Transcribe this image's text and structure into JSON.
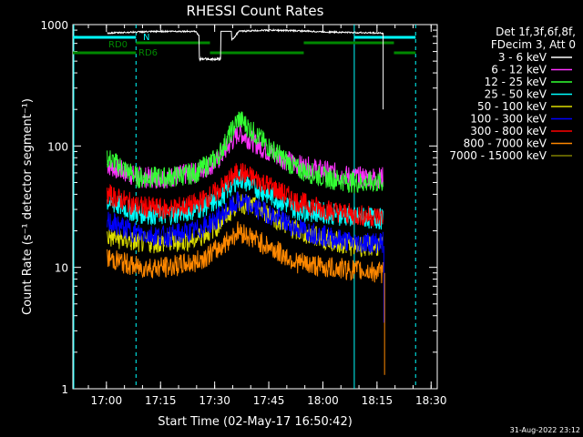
{
  "chart_data": {
    "type": "line",
    "title": "RHESSI Count Rates",
    "xlabel": "Start Time (02-May-17 16:50:42)",
    "ylabel": "Count Rate (s⁻¹ detector segment⁻¹)",
    "ylog": true,
    "ylim": [
      1,
      1000
    ],
    "xlim_minutes": [
      0,
      101
    ],
    "x_ticks": [
      {
        "label": "17:00",
        "minute": 9.3
      },
      {
        "label": "17:15",
        "minute": 24.3
      },
      {
        "label": "17:30",
        "minute": 39.3
      },
      {
        "label": "17:45",
        "minute": 54.3
      },
      {
        "label": "18:00",
        "minute": 69.3
      },
      {
        "label": "18:15",
        "minute": 84.3
      },
      {
        "label": "18:30",
        "minute": 99.3
      }
    ],
    "y_ticks": [
      {
        "label": "1",
        "value": 1
      },
      {
        "label": "10",
        "value": 10
      },
      {
        "label": "100",
        "value": 100
      },
      {
        "label": "1000",
        "value": 1000
      }
    ],
    "legend_header": [
      "Det 1f,3f,6f,8f,",
      "FDecim 3, Att 0"
    ],
    "series": [
      {
        "name": "3 - 6 keV",
        "color": "#ffffff",
        "values": [
          850,
          870,
          880,
          880,
          520,
          880,
          900,
          890,
          870,
          860,
          850
        ]
      },
      {
        "name": "6 - 12 keV",
        "color": "#ff33ff",
        "values": [
          70,
          55,
          55,
          60,
          75,
          130,
          90,
          70,
          62,
          55,
          55
        ]
      },
      {
        "name": "12 - 25 keV",
        "color": "#33ff33",
        "values": [
          80,
          55,
          55,
          60,
          80,
          170,
          100,
          65,
          55,
          50,
          50
        ]
      },
      {
        "name": "25 - 50 keV",
        "color": "#00ffff",
        "values": [
          35,
          28,
          27,
          30,
          35,
          55,
          40,
          30,
          28,
          26,
          25
        ]
      },
      {
        "name": "50 - 100 keV",
        "color": "#dddd00",
        "values": [
          18,
          16,
          16,
          17,
          22,
          35,
          28,
          20,
          17,
          15,
          15
        ]
      },
      {
        "name": "100 - 300 keV",
        "color": "#0000ff",
        "values": [
          24,
          19,
          18,
          20,
          25,
          35,
          28,
          21,
          18,
          16,
          16
        ]
      },
      {
        "name": "300 - 800 keV",
        "color": "#ff0000",
        "values": [
          40,
          32,
          30,
          33,
          42,
          62,
          48,
          35,
          30,
          27,
          26
        ]
      },
      {
        "name": "800 - 7000 keV",
        "color": "#ff8800",
        "values": [
          12,
          10,
          10,
          11,
          14,
          20,
          15,
          11,
          10,
          9.5,
          9
        ]
      },
      {
        "name": "7000 - 15000 keV",
        "color": "#808000",
        "values": []
      }
    ],
    "series_x_minutes": [
      9.5,
      18,
      26,
      34,
      40,
      46,
      54,
      62,
      70,
      78,
      86
    ],
    "annotations": [
      {
        "label": "RD0",
        "color": "#008800"
      },
      {
        "label": "RD6",
        "color": "#008800"
      },
      {
        "label": "N",
        "color": "#00ffff"
      }
    ],
    "grid": false
  },
  "footer_timestamp": "31-Aug-2022 23:12"
}
